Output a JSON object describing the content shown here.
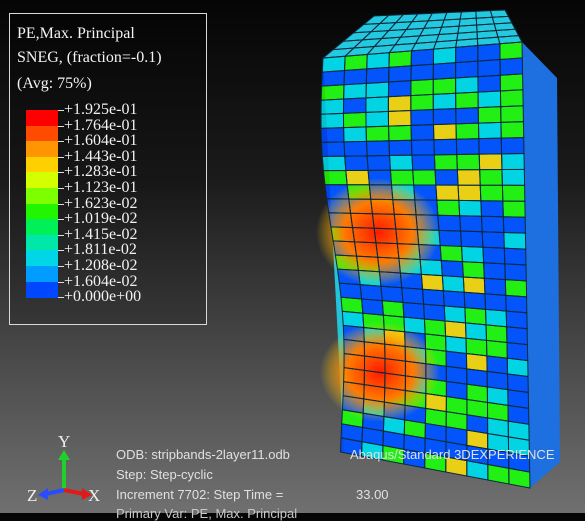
{
  "legend": {
    "title_lines": [
      "PE,Max. Principal",
      "SNEG, (fraction=-0.1)",
      "(Avg: 75%)"
    ],
    "entries": [
      {
        "label": "+1.925e-01",
        "color": "#ff0000"
      },
      {
        "label": "+1.764e-01",
        "color": "#ff4b00"
      },
      {
        "label": "+1.604e-01",
        "color": "#ff9500"
      },
      {
        "label": "+1.443e-01",
        "color": "#ffd000"
      },
      {
        "label": "+1.283e-01",
        "color": "#d4ff00"
      },
      {
        "label": "+1.123e-01",
        "color": "#7dff00"
      },
      {
        "label": "+1.623e-02",
        "color": "#22f500"
      },
      {
        "label": "+1.019e-02",
        "color": "#00f05a"
      },
      {
        "label": "+1.415e-02",
        "color": "#00e8a8"
      },
      {
        "label": "+1.811e-02",
        "color": "#00d6e6"
      },
      {
        "label": "+1.208e-02",
        "color": "#009cff"
      },
      {
        "label": "+1.604e-02",
        "color": "#0048ff"
      },
      {
        "label": "+0.000e+00",
        "color": "#0000ff"
      }
    ]
  },
  "info": {
    "odb": "ODB: stripbands-2layer11.odb",
    "solver": "Abaqus/Standard 3DEXPERIENCE",
    "step": "Step: Step-cyclic",
    "increment": "Increment   7702: Step Time =",
    "step_time_value": "33.00",
    "primary_var": "Primary Var: PE, Max. Principal"
  },
  "triad": {
    "y_label": "Y",
    "z_label": "Z",
    "x_label": "X"
  },
  "colors": {
    "red": "#ff0000",
    "orange": "#ff9500",
    "yellow": "#ffd000",
    "green": "#22f500",
    "cyan": "#00d6e6",
    "blue": "#0048ff"
  }
}
